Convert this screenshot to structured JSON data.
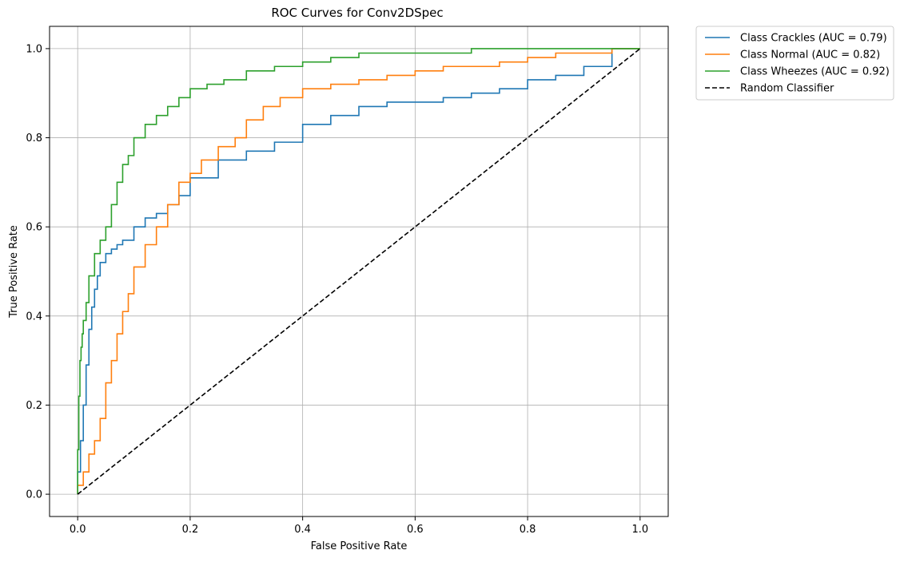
{
  "chart_data": {
    "type": "line",
    "title": "ROC Curves for Conv2DSpec",
    "xlabel": "False Positive Rate",
    "ylabel": "True Positive Rate",
    "xlim": [
      -0.05,
      1.05
    ],
    "ylim": [
      -0.05,
      1.05
    ],
    "xticks": [
      "0.0",
      "0.2",
      "0.4",
      "0.6",
      "0.8",
      "1.0"
    ],
    "yticks": [
      "0.0",
      "0.2",
      "0.4",
      "0.6",
      "0.8",
      "1.0"
    ],
    "grid": true,
    "legend_position": "outside-top-right",
    "series": [
      {
        "name": "Class Crackles (AUC = 0.79)",
        "color": "#1f77b4",
        "style": "solid",
        "x": [
          0,
          0.005,
          0.01,
          0.015,
          0.02,
          0.025,
          0.03,
          0.035,
          0.04,
          0.05,
          0.06,
          0.07,
          0.08,
          0.1,
          0.12,
          0.14,
          0.16,
          0.18,
          0.2,
          0.25,
          0.3,
          0.35,
          0.4,
          0.45,
          0.5,
          0.55,
          0.6,
          0.65,
          0.7,
          0.75,
          0.8,
          0.85,
          0.9,
          0.95,
          1.0
        ],
        "y": [
          0,
          0.05,
          0.12,
          0.2,
          0.29,
          0.37,
          0.42,
          0.46,
          0.49,
          0.52,
          0.54,
          0.55,
          0.56,
          0.57,
          0.6,
          0.62,
          0.63,
          0.65,
          0.67,
          0.71,
          0.75,
          0.77,
          0.79,
          0.83,
          0.85,
          0.87,
          0.88,
          0.88,
          0.89,
          0.9,
          0.91,
          0.93,
          0.94,
          0.96,
          1.0
        ]
      },
      {
        "name": "Class Normal (AUC = 0.82)",
        "color": "#ff7f0e",
        "style": "solid",
        "x": [
          0,
          0.01,
          0.02,
          0.03,
          0.04,
          0.05,
          0.06,
          0.07,
          0.08,
          0.09,
          0.1,
          0.12,
          0.14,
          0.16,
          0.18,
          0.2,
          0.22,
          0.25,
          0.28,
          0.3,
          0.33,
          0.36,
          0.4,
          0.45,
          0.5,
          0.55,
          0.6,
          0.65,
          0.7,
          0.75,
          0.8,
          0.85,
          0.9,
          0.95,
          1.0
        ],
        "y": [
          0,
          0.02,
          0.05,
          0.09,
          0.12,
          0.17,
          0.25,
          0.3,
          0.36,
          0.41,
          0.45,
          0.51,
          0.56,
          0.6,
          0.65,
          0.7,
          0.72,
          0.75,
          0.78,
          0.8,
          0.84,
          0.87,
          0.89,
          0.91,
          0.92,
          0.93,
          0.94,
          0.95,
          0.96,
          0.96,
          0.97,
          0.98,
          0.99,
          0.99,
          1.0
        ]
      },
      {
        "name": "Class Wheezes (AUC = 0.92)",
        "color": "#2ca02c",
        "style": "solid",
        "x": [
          0,
          0.002,
          0.004,
          0.006,
          0.008,
          0.01,
          0.015,
          0.02,
          0.03,
          0.04,
          0.05,
          0.06,
          0.07,
          0.08,
          0.09,
          0.1,
          0.12,
          0.14,
          0.16,
          0.18,
          0.2,
          0.23,
          0.26,
          0.3,
          0.35,
          0.4,
          0.45,
          0.5,
          0.6,
          0.7,
          0.8,
          0.9,
          1.0
        ],
        "y": [
          0,
          0.1,
          0.22,
          0.3,
          0.33,
          0.36,
          0.39,
          0.43,
          0.49,
          0.54,
          0.57,
          0.6,
          0.65,
          0.7,
          0.74,
          0.76,
          0.8,
          0.83,
          0.85,
          0.87,
          0.89,
          0.91,
          0.92,
          0.93,
          0.95,
          0.96,
          0.97,
          0.98,
          0.99,
          0.99,
          1.0,
          1.0,
          1.0
        ]
      },
      {
        "name": "Random Classifier",
        "color": "#000000",
        "style": "dashed",
        "x": [
          0,
          1
        ],
        "y": [
          0,
          1
        ]
      }
    ]
  }
}
